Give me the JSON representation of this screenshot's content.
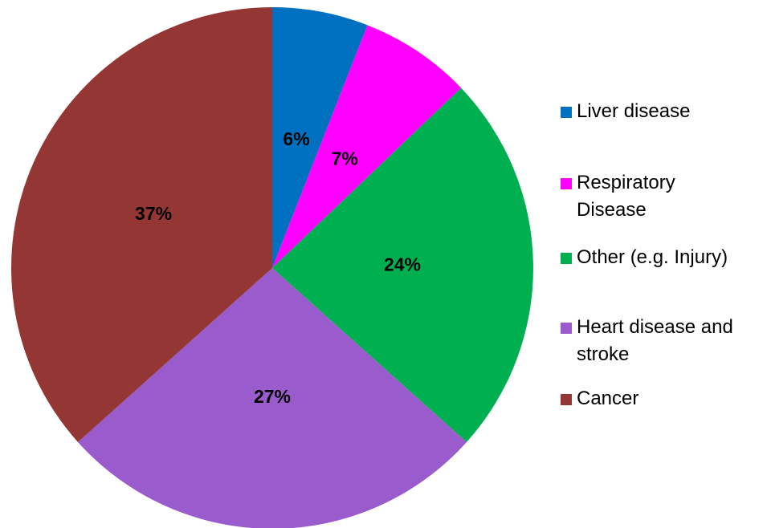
{
  "chart_data": {
    "type": "pie",
    "categories": [
      "Liver disease",
      "Respiratory Disease",
      "Other (e.g. Injury)",
      "Heart disease and stroke",
      "Cancer"
    ],
    "values": [
      6,
      7,
      24,
      27,
      37
    ],
    "value_labels": [
      "6%",
      "7%",
      "24%",
      "27%",
      "37%"
    ],
    "colors": [
      "#0070c0",
      "#ff00ff",
      "#00b050",
      "#9a5ccc",
      "#943634"
    ],
    "legend": "right"
  }
}
